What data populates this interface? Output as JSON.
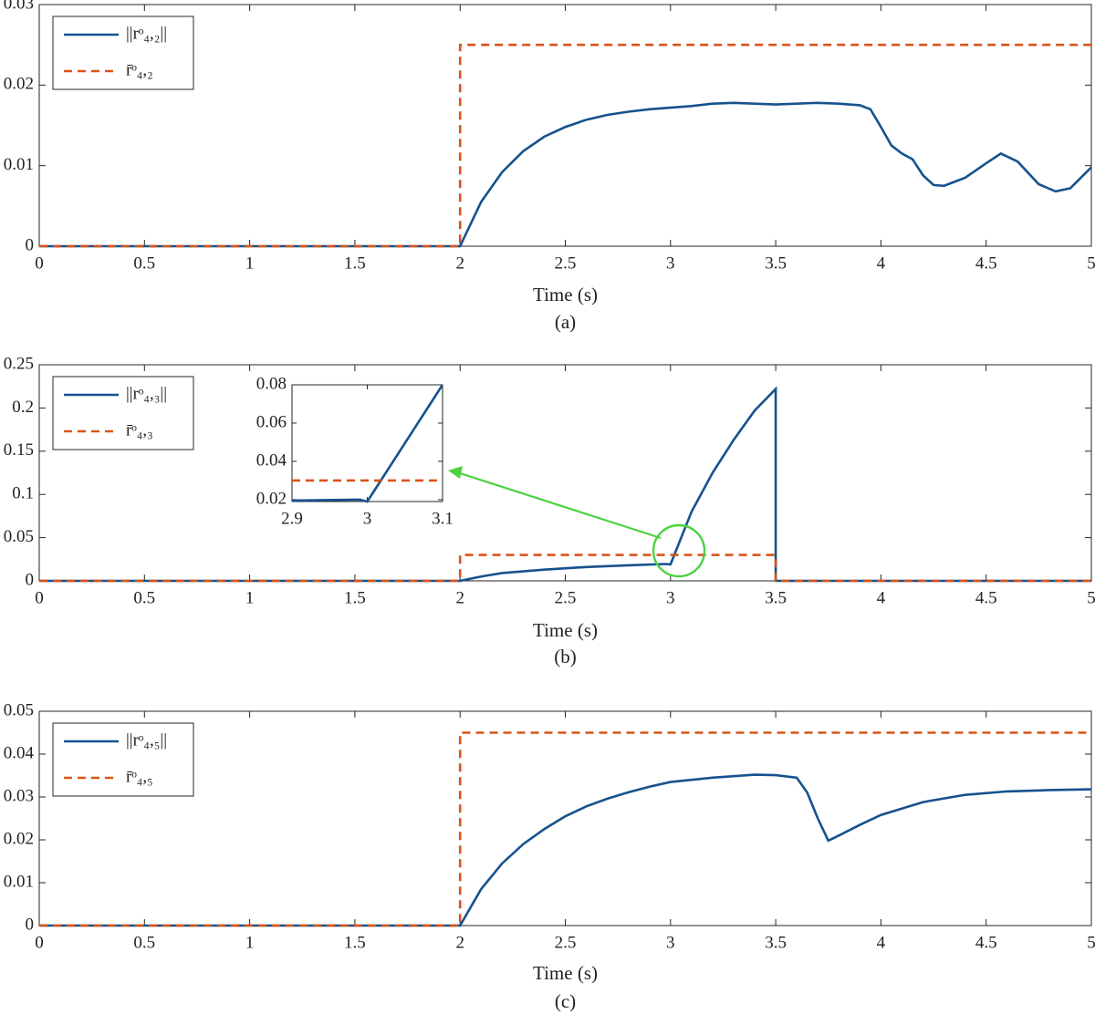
{
  "chart_data": [
    {
      "type": "line",
      "xlabel": "Time (s)",
      "caption": "(a)",
      "legend": "upper left",
      "xlim": [
        0,
        5
      ],
      "ylim": [
        0,
        0.03
      ],
      "xticks": [
        0,
        0.5,
        1,
        1.5,
        2,
        2.5,
        3,
        3.5,
        4,
        4.5,
        5
      ],
      "yticks": [
        0,
        0.01,
        0.02,
        0.03
      ],
      "series": [
        {
          "name": "||rᵒ₄,₂||",
          "color": "#16528e",
          "linestyle": "solid",
          "x": [
            0,
            2,
            2.1,
            2.2,
            2.3,
            2.4,
            2.5,
            2.6,
            2.7,
            2.8,
            2.9,
            3.0,
            3.1,
            3.2,
            3.3,
            3.4,
            3.5,
            3.6,
            3.7,
            3.8,
            3.9,
            3.95,
            4.0,
            4.05,
            4.1,
            4.15,
            4.2,
            4.25,
            4.3,
            4.4,
            4.5,
            4.57,
            4.65,
            4.75,
            4.83,
            4.9,
            5.0
          ],
          "values": [
            0,
            0,
            0.0055,
            0.0092,
            0.0118,
            0.0136,
            0.0148,
            0.0157,
            0.0163,
            0.0167,
            0.017,
            0.0172,
            0.0174,
            0.0177,
            0.0178,
            0.0177,
            0.0176,
            0.0177,
            0.0178,
            0.0177,
            0.0175,
            0.017,
            0.0148,
            0.0125,
            0.0115,
            0.0108,
            0.0088,
            0.0076,
            0.0075,
            0.0085,
            0.0103,
            0.0115,
            0.0105,
            0.0077,
            0.0068,
            0.0072,
            0.0098
          ]
        },
        {
          "name": "r̄ᵒ₄,₂",
          "color": "#d95319",
          "linestyle": "dashed",
          "x": [
            0,
            2,
            2,
            5
          ],
          "values": [
            0,
            0,
            0.025,
            0.025
          ]
        }
      ]
    },
    {
      "type": "line",
      "xlabel": "Time (s)",
      "caption": "(b)",
      "legend": "upper left",
      "xlim": [
        0,
        5
      ],
      "ylim": [
        0,
        0.25
      ],
      "xticks": [
        0,
        0.5,
        1,
        1.5,
        2,
        2.5,
        3,
        3.5,
        4,
        4.5,
        5
      ],
      "yticks": [
        0,
        0.05,
        0.1,
        0.15,
        0.2,
        0.25
      ],
      "series": [
        {
          "name": "||rᵒ₄,₃||",
          "color": "#16528e",
          "linestyle": "solid",
          "x": [
            0,
            2,
            2.1,
            2.2,
            2.4,
            2.6,
            2.8,
            2.98,
            3.0,
            3.1,
            3.2,
            3.3,
            3.4,
            3.5,
            3.5,
            5
          ],
          "values": [
            0,
            0,
            0.005,
            0.009,
            0.013,
            0.016,
            0.018,
            0.0195,
            0.019,
            0.08,
            0.125,
            0.163,
            0.197,
            0.222,
            0,
            0
          ]
        },
        {
          "name": "r̄ᵒ₄,₃",
          "color": "#d95319",
          "linestyle": "dashed",
          "x": [
            0,
            2,
            2,
            3.5,
            3.5,
            5
          ],
          "values": [
            0,
            0,
            0.03,
            0.03,
            0,
            0
          ]
        }
      ],
      "inset": {
        "xlim": [
          2.9,
          3.1
        ],
        "ylim": [
          0.019,
          0.08
        ],
        "xticks": [
          2.9,
          3,
          3.1
        ],
        "yticks": [
          0.02,
          0.04,
          0.06,
          0.08
        ],
        "series": [
          {
            "color": "#16528e",
            "linestyle": "solid",
            "x": [
              2.9,
              2.99,
              3.0,
              3.1
            ],
            "values": [
              0.0195,
              0.02,
              0.019,
              0.08
            ]
          },
          {
            "color": "#d95319",
            "linestyle": "dashed",
            "x": [
              2.9,
              3.1
            ],
            "values": [
              0.03,
              0.03
            ]
          }
        ]
      }
    },
    {
      "type": "line",
      "xlabel": "Time (s)",
      "caption": "(c)",
      "legend": "upper left",
      "xlim": [
        0,
        5
      ],
      "ylim": [
        0,
        0.05
      ],
      "xticks": [
        0,
        0.5,
        1,
        1.5,
        2,
        2.5,
        3,
        3.5,
        4,
        4.5,
        5
      ],
      "yticks": [
        0,
        0.01,
        0.02,
        0.03,
        0.04,
        0.05
      ],
      "series": [
        {
          "name": "||rᵒ₄,₅||",
          "color": "#16528e",
          "linestyle": "solid",
          "x": [
            0,
            2,
            2.1,
            2.2,
            2.3,
            2.4,
            2.5,
            2.6,
            2.7,
            2.8,
            2.9,
            3.0,
            3.2,
            3.4,
            3.5,
            3.6,
            3.65,
            3.7,
            3.75,
            3.8,
            3.9,
            4.0,
            4.2,
            4.4,
            4.6,
            4.8,
            5.0
          ],
          "values": [
            0,
            0,
            0.0085,
            0.0145,
            0.019,
            0.0225,
            0.0255,
            0.0278,
            0.0296,
            0.0311,
            0.0324,
            0.0335,
            0.0345,
            0.0352,
            0.0351,
            0.0345,
            0.031,
            0.025,
            0.0198,
            0.021,
            0.0235,
            0.0258,
            0.0288,
            0.0305,
            0.0313,
            0.0316,
            0.0318
          ]
        },
        {
          "name": "r̄ᵒ₄,₅",
          "color": "#d95319",
          "linestyle": "dashed",
          "x": [
            0,
            2,
            2,
            5
          ],
          "values": [
            0,
            0,
            0.045,
            0.045
          ]
        }
      ]
    }
  ]
}
